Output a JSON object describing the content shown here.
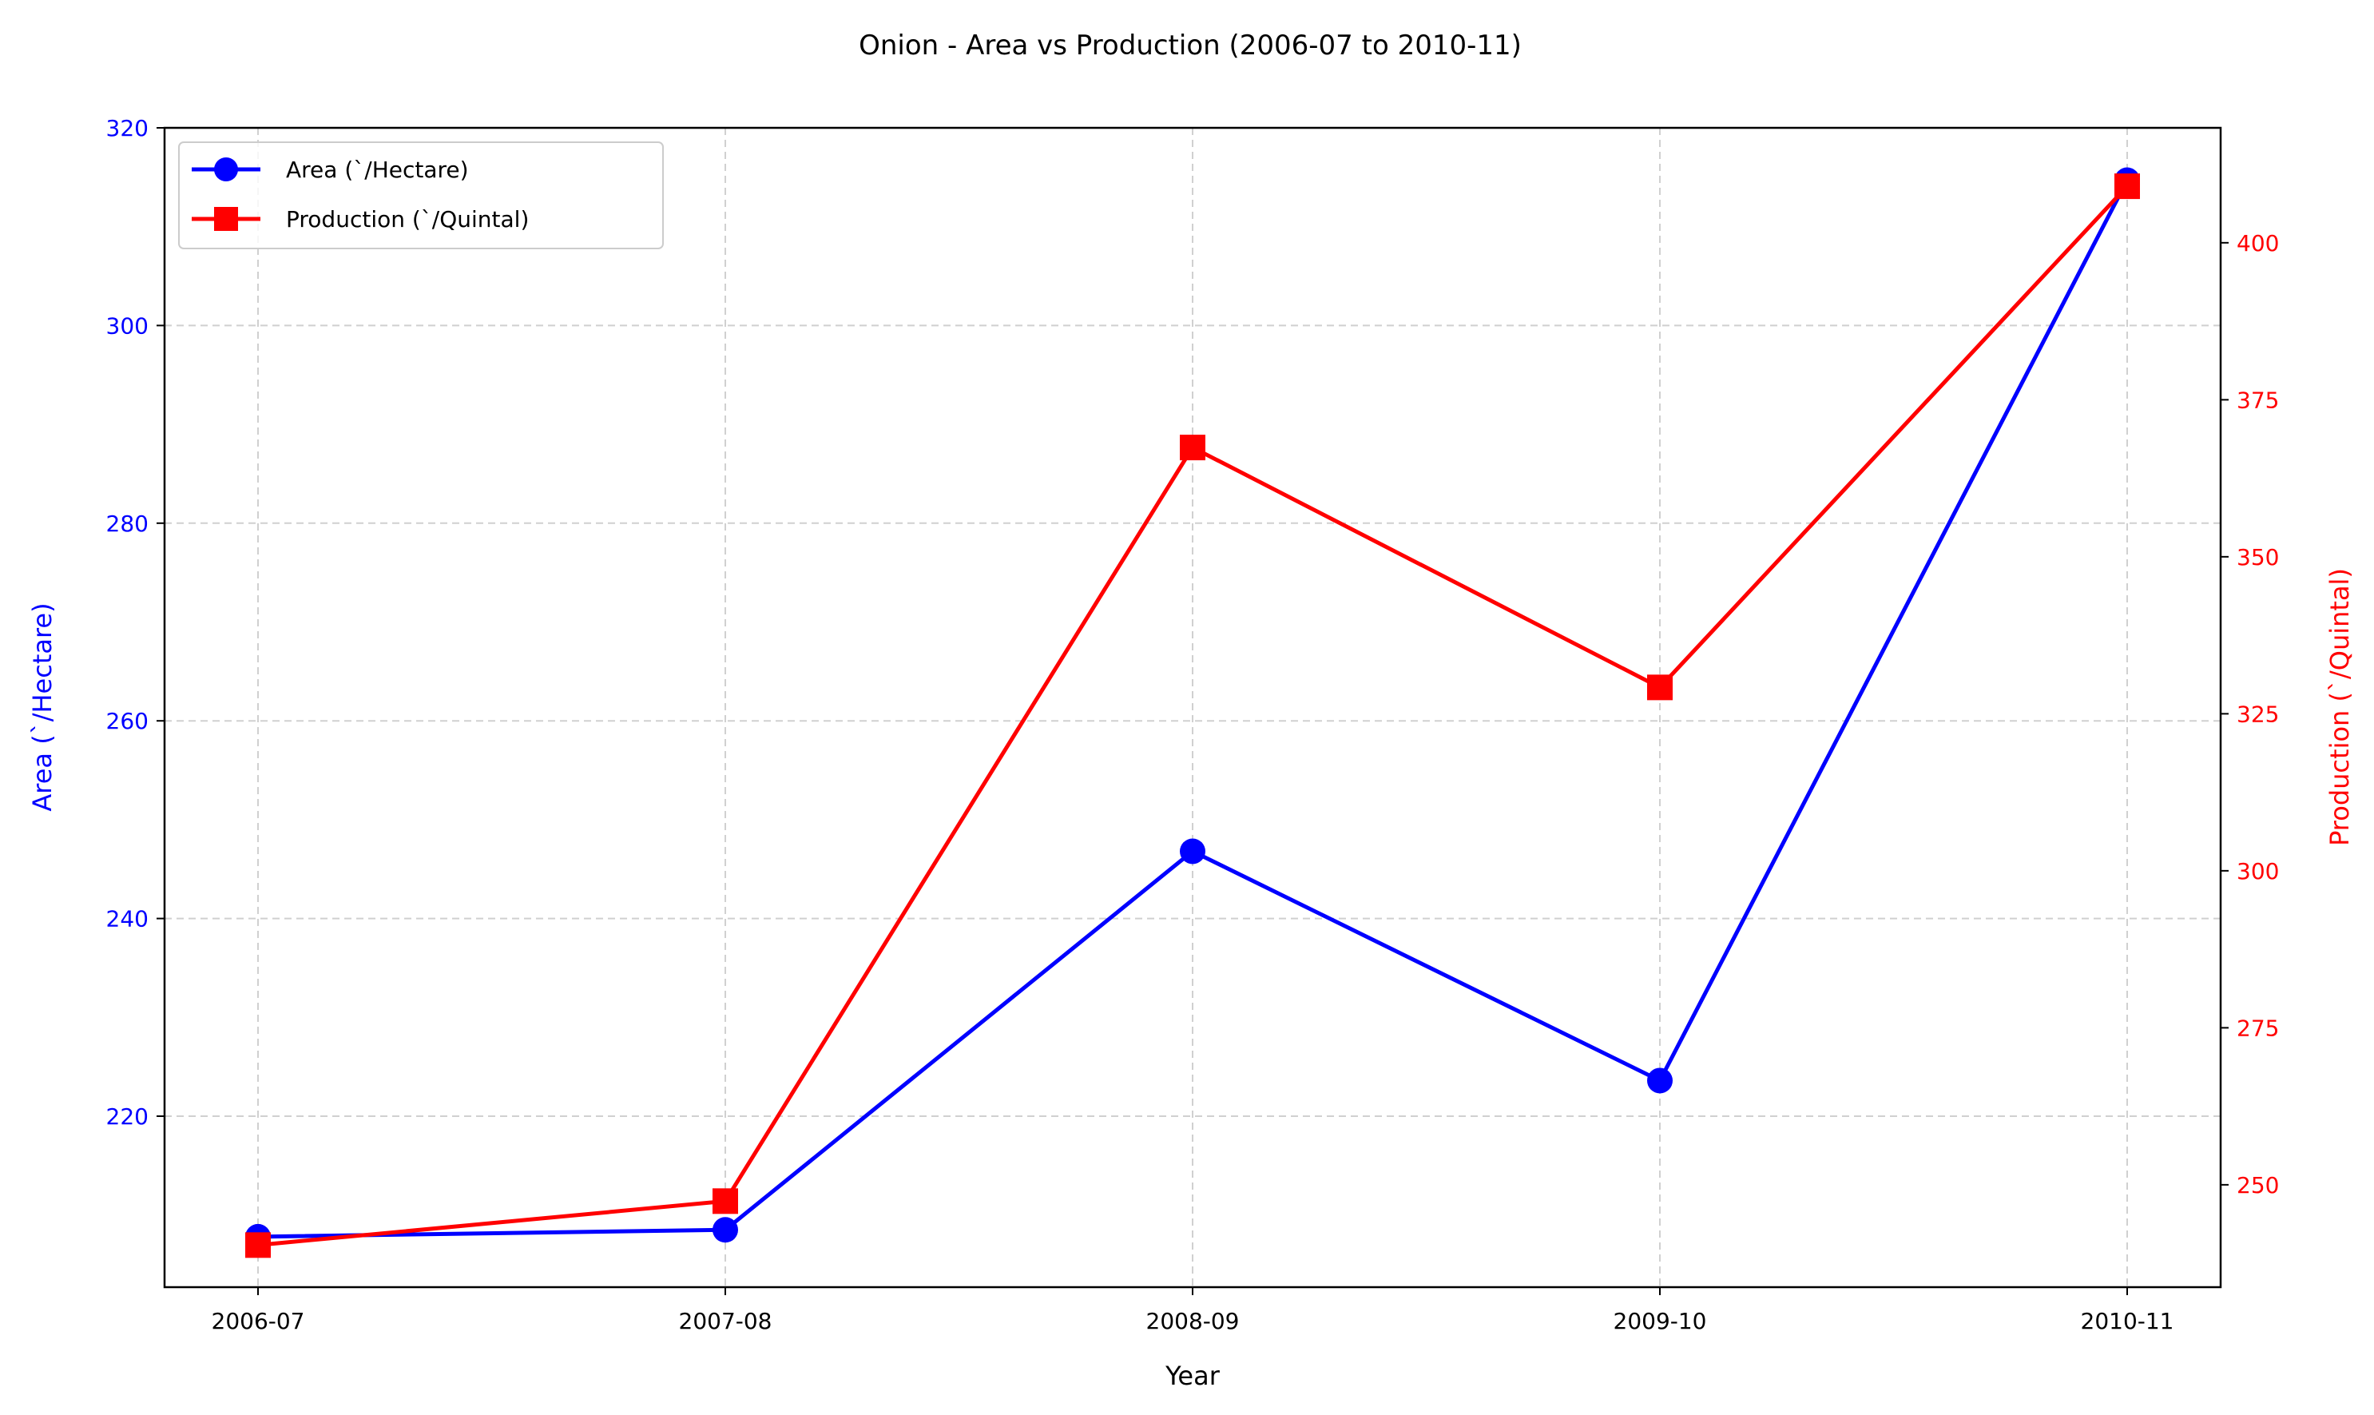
{
  "chart_data": {
    "type": "line",
    "title": "Onion - Area vs Production (2006-07 to 2010-11)",
    "xlabel": "Year",
    "categories": [
      "2006-07",
      "2007-08",
      "2008-09",
      "2009-10",
      "2010-11"
    ],
    "grid": true,
    "legend_position": "top-left",
    "axes": {
      "left": {
        "label": "Area (`/Hectare)",
        "range": [
          202.7,
          320
        ],
        "ticks": [
          220,
          240,
          260,
          280,
          300,
          320
        ],
        "color": "#0000ff"
      },
      "right": {
        "label": "Production (`/Quintal)",
        "range": [
          233.7,
          418.3
        ],
        "ticks": [
          250,
          275,
          300,
          325,
          350,
          375,
          400
        ],
        "color": "#ff0000"
      }
    },
    "series": [
      {
        "name": "Area (`/Hectare)",
        "axis": "left",
        "color": "#0000ff",
        "marker": "circle",
        "values": [
          207.8,
          208.5,
          246.8,
          223.6,
          314.7
        ]
      },
      {
        "name": "Production (`/Quintal)",
        "axis": "right",
        "color": "#ff0000",
        "marker": "square",
        "values": [
          240.4,
          247.4,
          367.4,
          329.2,
          409.0
        ]
      }
    ]
  }
}
